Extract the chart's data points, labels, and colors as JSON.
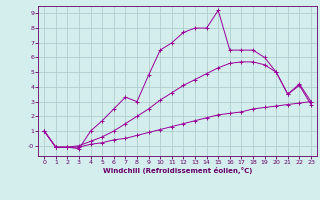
{
  "xlabel": "Windchill (Refroidissement éolien,°C)",
  "background_color": "#d4eeed",
  "line_color": "#990099",
  "grid_color": "#aac8c8",
  "xlim": [
    -0.5,
    23.5
  ],
  "ylim": [
    -0.7,
    9.5
  ],
  "xticks": [
    0,
    1,
    2,
    3,
    4,
    5,
    6,
    7,
    8,
    9,
    10,
    11,
    12,
    13,
    14,
    15,
    16,
    17,
    18,
    19,
    20,
    21,
    22,
    23
  ],
  "yticks": [
    0,
    1,
    2,
    3,
    4,
    5,
    6,
    7,
    8,
    9
  ],
  "ytick_labels": [
    "-0",
    "1",
    "2",
    "3",
    "4",
    "5",
    "6",
    "7",
    "8",
    "9"
  ],
  "line1_x": [
    0,
    1,
    2,
    3,
    4,
    5,
    6,
    7,
    8,
    9,
    10,
    11,
    12,
    13,
    14,
    15,
    16,
    17,
    18,
    19,
    20,
    21,
    22,
    23
  ],
  "line1_y": [
    1.0,
    -0.1,
    -0.1,
    -0.1,
    0.1,
    0.2,
    0.4,
    0.5,
    0.7,
    0.9,
    1.1,
    1.3,
    1.5,
    1.7,
    1.9,
    2.1,
    2.2,
    2.3,
    2.5,
    2.6,
    2.7,
    2.8,
    2.9,
    3.0
  ],
  "line2_x": [
    0,
    1,
    2,
    3,
    4,
    5,
    6,
    7,
    8,
    9,
    10,
    11,
    12,
    13,
    14,
    15,
    16,
    17,
    18,
    19,
    20,
    21,
    22,
    23
  ],
  "line2_y": [
    1.0,
    -0.1,
    -0.1,
    0.0,
    0.3,
    0.6,
    1.0,
    1.5,
    2.0,
    2.5,
    3.1,
    3.6,
    4.1,
    4.5,
    4.9,
    5.3,
    5.6,
    5.7,
    5.7,
    5.5,
    5.0,
    3.5,
    4.2,
    3.0
  ],
  "line3_x": [
    0,
    1,
    2,
    3,
    4,
    5,
    6,
    7,
    8,
    9,
    10,
    11,
    12,
    13,
    14,
    15,
    16,
    17,
    18,
    19,
    20,
    21,
    22,
    23
  ],
  "line3_y": [
    1.0,
    -0.1,
    -0.1,
    -0.2,
    1.0,
    1.7,
    2.5,
    3.3,
    3.0,
    4.8,
    6.5,
    7.0,
    7.7,
    8.0,
    8.0,
    9.2,
    6.5,
    6.5,
    6.5,
    6.0,
    5.0,
    3.5,
    4.1,
    2.8
  ]
}
